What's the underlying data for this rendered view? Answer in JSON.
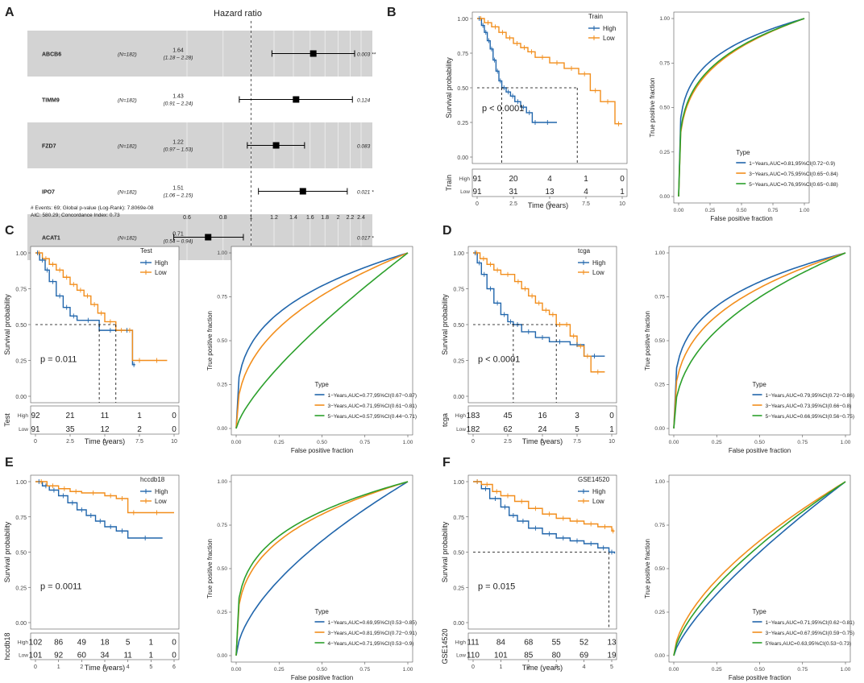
{
  "colors": {
    "high": "#2166ac",
    "low": "#f28e1c",
    "roc1": "#2166ac",
    "roc2": "#f28e1c",
    "roc3": "#2ca02c",
    "band": "#d3d3d3"
  },
  "chart_data": [
    {
      "panel": "A",
      "type": "forest",
      "title": "Hazard ratio",
      "rows": [
        {
          "gene": "ABCB6",
          "n": "(N=182)",
          "hr": "1.64",
          "ci": "(1.18 – 2.28)",
          "p": "0.003 **",
          "hr_val": 1.64,
          "lo": 1.18,
          "hi": 2.28,
          "shaded": true
        },
        {
          "gene": "TIMM9",
          "n": "(N=182)",
          "hr": "1.43",
          "ci": "(0.91 – 2.24)",
          "p": "0.124",
          "hr_val": 1.43,
          "lo": 0.91,
          "hi": 2.24,
          "shaded": false
        },
        {
          "gene": "FZD7",
          "n": "(N=182)",
          "hr": "1.22",
          "ci": "(0.97 – 1.53)",
          "p": "0.083",
          "hr_val": 1.22,
          "lo": 0.97,
          "hi": 1.53,
          "shaded": true
        },
        {
          "gene": "IPO7",
          "n": "(N=182)",
          "hr": "1.51",
          "ci": "(1.06 – 2.15)",
          "p": "0.021 *",
          "hr_val": 1.51,
          "lo": 1.06,
          "hi": 2.15,
          "shaded": false
        },
        {
          "gene": "ACAT1",
          "n": "(N=182)",
          "hr": "0.71",
          "ci": "(0.54 – 0.94)",
          "p": "0.017 *",
          "hr_val": 0.71,
          "lo": 0.54,
          "hi": 0.94,
          "shaded": true
        }
      ],
      "ticks": [
        0.6,
        0.8,
        1,
        1.2,
        1.4,
        1.6,
        1.8,
        2,
        2.2,
        2.4
      ],
      "tick_labels": [
        "0.6",
        "0.8",
        "1",
        "1.2",
        "1.4",
        "1.6",
        "1.8",
        "2",
        "2.2",
        "2.4"
      ],
      "footnote1": "# Events: 69; Global p-value (Log-Rank): 7.8069e-08",
      "footnote2": "AIC: 580.29; Concordance Index: 0.73"
    },
    {
      "panel": "B",
      "type": "km",
      "legend_title": "Train",
      "legend_high": "High",
      "legend_low": "Low",
      "pval": "p < 0.0001",
      "xlabel": "Time (years)",
      "ylabel": "Survival probability",
      "xlim": [
        0,
        10
      ],
      "xticks": [
        0,
        2.5,
        5,
        7.5,
        10
      ],
      "xtick_labels": [
        "0",
        "2.5",
        "5",
        "7.5",
        "10"
      ],
      "yticks": [
        0,
        0.25,
        0.5,
        0.75,
        1
      ],
      "ytick_labels": [
        "0.00",
        "0.25",
        "0.50",
        "0.75",
        "1.00"
      ],
      "high": {
        "x": [
          0,
          0.3,
          0.5,
          0.7,
          0.9,
          1.1,
          1.3,
          1.5,
          1.7,
          2.0,
          2.3,
          2.6,
          3.0,
          3.4,
          3.8,
          4.2,
          5.5
        ],
        "y": [
          1,
          0.95,
          0.9,
          0.84,
          0.78,
          0.7,
          0.62,
          0.55,
          0.5,
          0.47,
          0.44,
          0.4,
          0.36,
          0.32,
          0.25,
          0.25,
          0.25
        ]
      },
      "low": {
        "x": [
          0,
          0.5,
          1,
          1.5,
          2,
          2.5,
          3,
          3.5,
          4,
          5,
          6,
          7,
          7.8,
          8.5,
          9.5,
          10
        ],
        "y": [
          1,
          0.97,
          0.94,
          0.9,
          0.86,
          0.82,
          0.79,
          0.76,
          0.72,
          0.68,
          0.64,
          0.6,
          0.48,
          0.4,
          0.24,
          0.24
        ]
      },
      "median_high": 1.7,
      "median_low": 6.9,
      "risk_label": "Train",
      "risk_row_high": "High",
      "risk_row_low": "Low",
      "risk_high": [
        "91",
        "20",
        "4",
        "1",
        "0"
      ],
      "risk_low": [
        "91",
        "31",
        "13",
        "4",
        "1"
      ],
      "roc": {
        "xlabel": "False positive fraction",
        "ylabel": "True positive fraction",
        "legend_title": "Type",
        "curves": [
          {
            "label": "1−Years,AUC=0.81,95%CI(0.72−0.9)",
            "k": 0.2
          },
          {
            "label": "3−Years,AUC=0.75,95%CI(0.65−0.84)",
            "k": 0.25
          },
          {
            "label": "5−Years,AUC=0.76,95%CI(0.65−0.88)",
            "k": 0.24
          }
        ]
      }
    },
    {
      "panel": "C",
      "type": "km",
      "legend_title": "Test",
      "legend_high": "High",
      "legend_low": "Low",
      "pval": "p = 0.011",
      "xlabel": "Time (years)",
      "ylabel": "Survival probability",
      "xlim": [
        0,
        10
      ],
      "xticks": [
        0,
        2.5,
        5,
        7.5,
        10
      ],
      "xtick_labels": [
        "0",
        "2.5",
        "5",
        "7.5",
        "10"
      ],
      "yticks": [
        0,
        0.25,
        0.5,
        0.75,
        1
      ],
      "ytick_labels": [
        "0.00",
        "0.25",
        "0.50",
        "0.75",
        "1.00"
      ],
      "high": {
        "x": [
          0,
          0.3,
          0.7,
          1,
          1.5,
          2,
          2.5,
          3,
          4.6,
          6.2,
          7,
          7.2
        ],
        "y": [
          1,
          0.95,
          0.88,
          0.8,
          0.7,
          0.62,
          0.56,
          0.53,
          0.46,
          0.46,
          0.22,
          0.22
        ]
      },
      "low": {
        "x": [
          0,
          0.5,
          1,
          1.5,
          2,
          2.5,
          3,
          3.5,
          4,
          4.5,
          5,
          5.8,
          6.6,
          7,
          8,
          9.5
        ],
        "y": [
          1,
          0.96,
          0.92,
          0.88,
          0.83,
          0.78,
          0.74,
          0.7,
          0.64,
          0.58,
          0.52,
          0.46,
          0.46,
          0.25,
          0.25,
          0.25
        ]
      },
      "median_high": 4.6,
      "median_low": 5.8,
      "risk_label": "Test",
      "risk_row_high": "High",
      "risk_row_low": "Low",
      "risk_high": [
        "92",
        "21",
        "11",
        "1",
        "0"
      ],
      "risk_low": [
        "91",
        "35",
        "12",
        "2",
        "0"
      ],
      "roc": {
        "xlabel": "False positive fraction",
        "ylabel": "True positive fraction",
        "legend_title": "Type",
        "curves": [
          {
            "label": "1−Years,AUC=0.77,95%CI(0.67−0.87)",
            "k": 0.3
          },
          {
            "label": "3−Years,AUC=0.71,95%CI(0.61−0.81)",
            "k": 0.4
          },
          {
            "label": "5−Years,AUC=0.57,95%CI(0.44−0.71)",
            "k": 0.75
          }
        ]
      }
    },
    {
      "panel": "D",
      "type": "km",
      "legend_title": "tcga",
      "legend_high": "High",
      "legend_low": "Low",
      "pval": "p < 0.0001",
      "xlabel": "Time (years)",
      "ylabel": "Survival probability",
      "xlim": [
        0,
        10
      ],
      "xticks": [
        0,
        2.5,
        5,
        7.5,
        10
      ],
      "xtick_labels": [
        "0",
        "2.5",
        "5",
        "7.5",
        "10"
      ],
      "yticks": [
        0,
        0.25,
        0.5,
        0.75,
        1
      ],
      "ytick_labels": [
        "0.00",
        "0.25",
        "0.50",
        "0.75",
        "1.00"
      ],
      "high": {
        "x": [
          0,
          0.3,
          0.6,
          1,
          1.5,
          2,
          2.5,
          2.9,
          3.5,
          4.5,
          5.5,
          7,
          8,
          9.5
        ],
        "y": [
          1,
          0.93,
          0.85,
          0.75,
          0.65,
          0.57,
          0.52,
          0.5,
          0.45,
          0.41,
          0.38,
          0.36,
          0.28,
          0.28
        ]
      },
      "low": {
        "x": [
          0,
          0.5,
          1,
          1.5,
          2,
          3,
          3.5,
          4,
          4.5,
          5,
          5.5,
          6,
          6.5,
          7,
          7.5,
          8,
          8.5,
          9.5
        ],
        "y": [
          1,
          0.96,
          0.92,
          0.88,
          0.85,
          0.8,
          0.75,
          0.7,
          0.65,
          0.6,
          0.57,
          0.5,
          0.5,
          0.42,
          0.35,
          0.28,
          0.17,
          0.17
        ]
      },
      "median_high": 2.9,
      "median_low": 6.0,
      "risk_label": "tcga",
      "risk_row_high": "High",
      "risk_row_low": "Low",
      "risk_high": [
        "183",
        "45",
        "16",
        "3",
        "0"
      ],
      "risk_low": [
        "182",
        "62",
        "24",
        "5",
        "1"
      ],
      "roc": {
        "xlabel": "False positive fraction",
        "ylabel": "True positive fraction",
        "legend_title": "Type",
        "curves": [
          {
            "label": "1−Years,AUC=0.79,95%CI(0.72−0.86)",
            "k": 0.26
          },
          {
            "label": "3−Years,AUC=0.73,95%CI(0.66−0.8)",
            "k": 0.32
          },
          {
            "label": "5−Years,AUC=0.66,95%CI(0.56−0.75)",
            "k": 0.42
          }
        ]
      }
    },
    {
      "panel": "E",
      "type": "km",
      "legend_title": "hccdb18",
      "legend_high": "High",
      "legend_low": "Low",
      "pval": "p = 0.0011",
      "xlabel": "Time (years)",
      "ylabel": "Survival probability",
      "xlim": [
        0,
        6
      ],
      "xticks": [
        0,
        1,
        2,
        3,
        4,
        5,
        6
      ],
      "xtick_labels": [
        "0",
        "1",
        "2",
        "3",
        "4",
        "5",
        "6"
      ],
      "yticks": [
        0,
        0.25,
        0.5,
        0.75,
        1
      ],
      "ytick_labels": [
        "0.00",
        "0.25",
        "0.50",
        "0.75",
        "1.00"
      ],
      "high": {
        "x": [
          0,
          0.3,
          0.6,
          1,
          1.4,
          1.8,
          2.2,
          2.6,
          3,
          3.5,
          4,
          5.5
        ],
        "y": [
          1,
          0.97,
          0.94,
          0.9,
          0.85,
          0.8,
          0.76,
          0.72,
          0.68,
          0.65,
          0.6,
          0.6
        ]
      },
      "low": {
        "x": [
          0,
          0.5,
          1,
          1.5,
          2,
          3,
          3.5,
          4,
          4.5,
          6
        ],
        "y": [
          1,
          0.97,
          0.95,
          0.93,
          0.92,
          0.9,
          0.88,
          0.78,
          0.78,
          0.78
        ]
      },
      "median_high": null,
      "median_low": null,
      "risk_label": "hccdb18",
      "risk_row_high": "High",
      "risk_row_low": "Low",
      "risk_high": [
        "102",
        "86",
        "49",
        "18",
        "5",
        "1",
        "0"
      ],
      "risk_low": [
        "101",
        "92",
        "60",
        "34",
        "11",
        "1",
        "0"
      ],
      "roc": {
        "xlabel": "False positive fraction",
        "ylabel": "True positive fraction",
        "legend_title": "Type",
        "curves": [
          {
            "label": "1−Years,AUC=0.69,95%CI(0.53−0.85)",
            "k": 0.6
          },
          {
            "label": "3−Years,AUC=0.81,95%CI(0.72−0.91)",
            "k": 0.3
          },
          {
            "label": "4−Years,AUC=0.71,95%CI(0.53−0.9)",
            "k": 0.27
          }
        ]
      }
    },
    {
      "panel": "F",
      "type": "km",
      "legend_title": "GSE14520",
      "legend_high": "High",
      "legend_low": "Low",
      "pval": "p = 0.015",
      "xlabel": "Time (years)",
      "ylabel": "Survival probability",
      "xlim": [
        0,
        5
      ],
      "xticks": [
        0,
        1,
        2,
        3,
        4,
        5
      ],
      "xtick_labels": [
        "0",
        "1",
        "2",
        "3",
        "4",
        "5"
      ],
      "yticks": [
        0,
        0.25,
        0.5,
        0.75,
        1
      ],
      "ytick_labels": [
        "0.00",
        "0.25",
        "0.50",
        "0.75",
        "1.00"
      ],
      "high": {
        "x": [
          0,
          0.3,
          0.6,
          1,
          1.3,
          1.6,
          2,
          2.5,
          3,
          3.5,
          4,
          4.5,
          4.9,
          5.1
        ],
        "y": [
          1,
          0.95,
          0.88,
          0.82,
          0.76,
          0.72,
          0.67,
          0.63,
          0.6,
          0.58,
          0.56,
          0.53,
          0.5,
          0.49
        ]
      },
      "low": {
        "x": [
          0,
          0.3,
          0.7,
          1,
          1.5,
          2,
          2.5,
          3,
          3.5,
          4,
          4.5,
          5,
          5.1
        ],
        "y": [
          1,
          0.98,
          0.93,
          0.9,
          0.86,
          0.81,
          0.77,
          0.74,
          0.72,
          0.7,
          0.68,
          0.65,
          0.65
        ]
      },
      "median_high": 4.9,
      "median_low": null,
      "risk_label": "GSE14520",
      "risk_row_high": "High",
      "risk_row_low": "Low",
      "risk_high": [
        "111",
        "84",
        "68",
        "55",
        "52",
        "13"
      ],
      "risk_low": [
        "110",
        "101",
        "85",
        "80",
        "69",
        "19"
      ],
      "roc": {
        "xlabel": "False positive fraction",
        "ylabel": "True positive fraction",
        "legend_title": "Type",
        "curves": [
          {
            "label": "1−Years,AUC=0.71,95%CI(0.62−0.81)",
            "k": 0.75
          },
          {
            "label": "3−Years,AUC=0.67,95%CI(0.59−0.75)",
            "k": 0.6
          },
          {
            "label": "5Years,AUC=0.63,95%CI(0.53−0.73)",
            "k": 0.66
          }
        ]
      }
    }
  ]
}
